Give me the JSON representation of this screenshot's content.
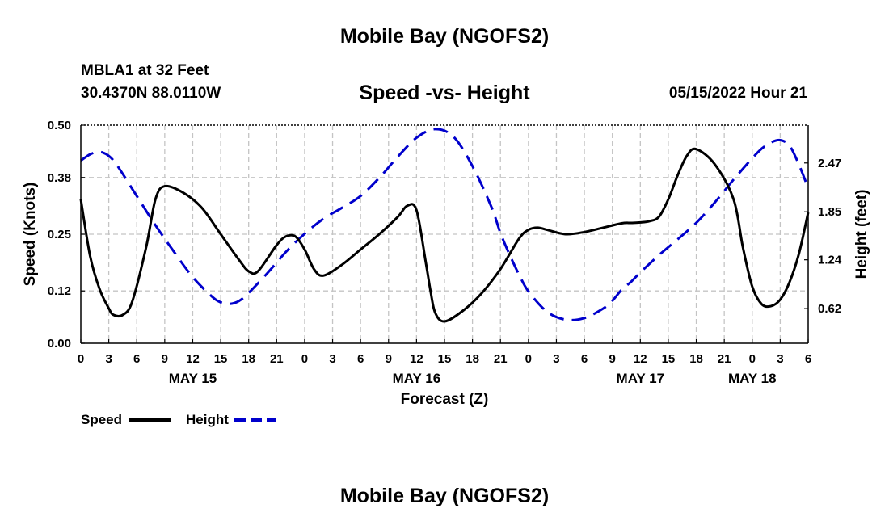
{
  "header": {
    "title": "Mobile Bay (NGOFS2)",
    "station": "MBLA1 at 32 Feet",
    "coords": "30.4370N  88.0110W",
    "subtitle": "Speed -vs- Height",
    "timestamp": "05/15/2022 Hour 21",
    "footer_title": "Mobile Bay (NGOFS2)"
  },
  "chart_data": {
    "type": "line",
    "title": "Speed -vs- Height",
    "xlabel": "Forecast (Z)",
    "ylabel": "Speed (Knots)",
    "y2label": "Height (feet)",
    "x_ticks": [
      "0",
      "3",
      "6",
      "9",
      "12",
      "15",
      "18",
      "21",
      "0",
      "3",
      "6",
      "9",
      "12",
      "15",
      "18",
      "21",
      "0",
      "3",
      "6",
      "9",
      "12",
      "15",
      "18",
      "21",
      "0",
      "3",
      "6"
    ],
    "day_labels": [
      {
        "label": "MAY 15",
        "hour": 12
      },
      {
        "label": "MAY 16",
        "hour": 36
      },
      {
        "label": "MAY 17",
        "hour": 60
      },
      {
        "label": "MAY 18",
        "hour": 72
      }
    ],
    "xlim": [
      0,
      78
    ],
    "ylim": [
      0,
      0.5
    ],
    "y_ticks": [
      "0.00",
      "0.12",
      "0.25",
      "0.38",
      "0.50"
    ],
    "y2lim": [
      0.18,
      2.95
    ],
    "y2_ticks": [
      "0.62",
      "1.24",
      "1.85",
      "2.47"
    ],
    "grid": true,
    "legend_position": "bottom-left",
    "series": [
      {
        "name": "Speed",
        "color": "#000000",
        "axis": "left",
        "x": [
          0,
          1,
          2,
          3,
          3.5,
          4.5,
          5.5,
          7,
          8,
          9,
          11,
          13,
          15,
          17,
          18,
          19,
          21,
          22,
          23,
          24,
          25,
          26,
          28,
          30,
          32,
          34,
          35,
          36,
          37,
          37.5,
          38,
          39,
          41,
          43,
          45,
          47,
          48,
          49,
          50,
          52,
          54,
          56,
          58,
          59,
          60,
          61,
          62,
          63,
          64,
          65,
          66,
          68,
          70,
          71,
          72,
          73,
          74,
          75,
          76,
          77,
          78
        ],
        "y": [
          0.33,
          0.2,
          0.125,
          0.08,
          0.065,
          0.065,
          0.095,
          0.22,
          0.33,
          0.36,
          0.345,
          0.31,
          0.25,
          0.19,
          0.165,
          0.165,
          0.225,
          0.245,
          0.245,
          0.215,
          0.17,
          0.155,
          0.18,
          0.215,
          0.25,
          0.29,
          0.315,
          0.305,
          0.185,
          0.12,
          0.07,
          0.05,
          0.075,
          0.115,
          0.17,
          0.24,
          0.26,
          0.265,
          0.26,
          0.25,
          0.255,
          0.265,
          0.275,
          0.276,
          0.277,
          0.28,
          0.29,
          0.33,
          0.385,
          0.43,
          0.445,
          0.41,
          0.33,
          0.22,
          0.13,
          0.09,
          0.085,
          0.1,
          0.14,
          0.205,
          0.3
        ]
      },
      {
        "name": "Height",
        "color": "#0000cc",
        "axis": "right",
        "x": [
          0,
          1,
          2,
          3,
          4,
          6,
          8,
          10,
          12,
          14,
          15,
          16,
          17,
          18,
          20,
          22,
          24,
          26,
          28,
          30,
          32,
          34,
          36,
          38,
          40,
          42,
          44,
          45,
          46,
          47,
          48,
          50,
          52,
          54,
          56,
          57,
          58,
          59,
          60,
          62,
          64,
          66,
          68,
          70,
          72,
          73,
          74,
          75,
          76,
          77,
          78
        ],
        "y": [
          2.5,
          2.58,
          2.61,
          2.56,
          2.42,
          2.05,
          1.68,
          1.34,
          1.02,
          0.78,
          0.7,
          0.68,
          0.72,
          0.82,
          1.07,
          1.34,
          1.57,
          1.76,
          1.9,
          2.05,
          2.28,
          2.55,
          2.79,
          2.9,
          2.8,
          2.43,
          1.92,
          1.58,
          1.3,
          1.05,
          0.84,
          0.58,
          0.48,
          0.5,
          0.62,
          0.72,
          0.86,
          0.96,
          1.08,
          1.3,
          1.5,
          1.71,
          1.97,
          2.26,
          2.53,
          2.65,
          2.73,
          2.76,
          2.69,
          2.45,
          2.15
        ]
      }
    ]
  }
}
